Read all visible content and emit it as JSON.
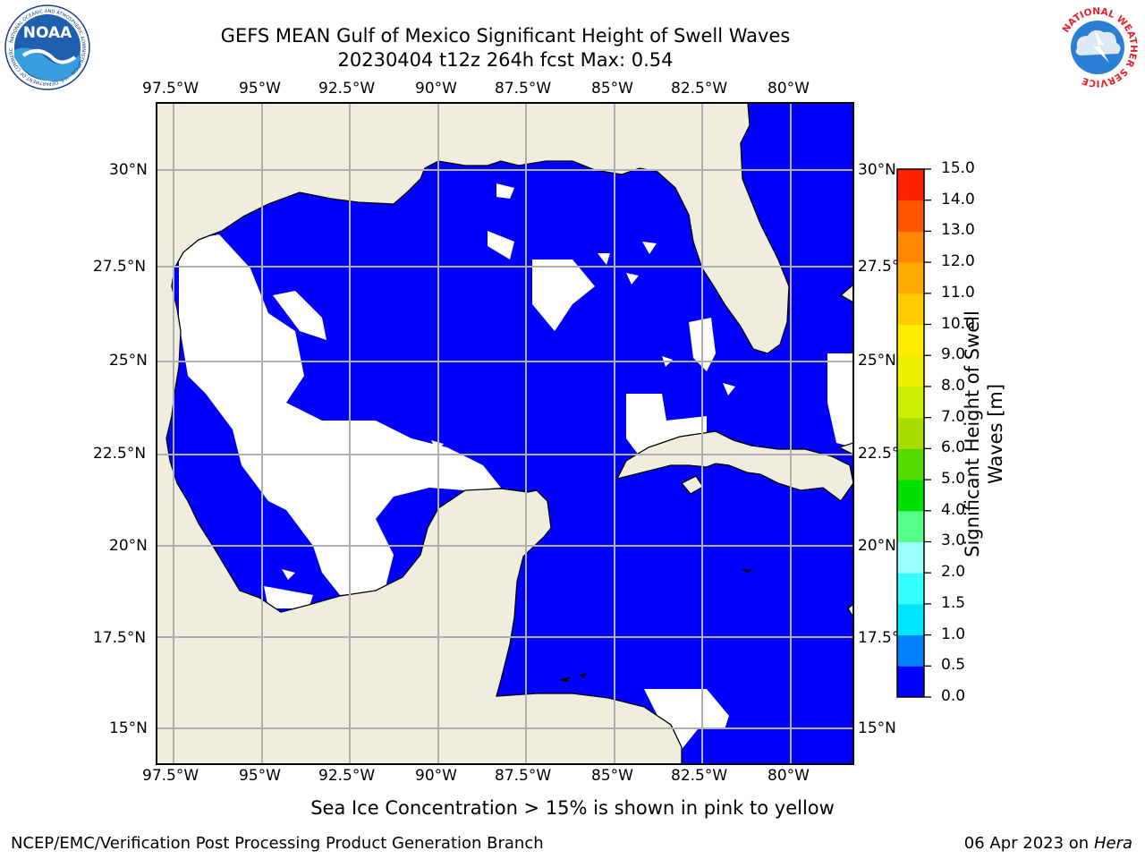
{
  "title": {
    "line1": "GEFS MEAN Gulf of Mexico Significant Height of Swell Waves",
    "line2": "20230404 t12z 264h fcst   Max: 0.54"
  },
  "logos": {
    "left": {
      "name": "noaa-logo",
      "text": "NOAA",
      "ring_text": "NATIONAL OCEANIC AND ATMOSPHERIC ADMINISTRATION · U.S. DEPARTMENT OF COMMERCE"
    },
    "right": {
      "name": "nws-logo",
      "ring_text": "NATIONAL WEATHER SERVICE"
    }
  },
  "map": {
    "longitude_labels": [
      "97.5°W",
      "95°W",
      "92.5°W",
      "90°W",
      "87.5°W",
      "85°W",
      "82.5°W",
      "80°W"
    ],
    "latitude_labels": [
      "30°N",
      "27.5°N",
      "25°N",
      "22.5°N",
      "20°N",
      "17.5°N",
      "15°N"
    ],
    "longitudes": [
      -97.5,
      -95,
      -92.5,
      -90,
      -87.5,
      -85,
      -82.5,
      -80
    ],
    "latitudes": [
      30,
      27.5,
      25,
      22.5,
      20,
      17.5,
      15
    ],
    "lon_range": [
      -98,
      -78.2
    ],
    "lat_range": [
      14,
      31.9
    ],
    "land_color": "#efedde",
    "water_color": "#0000ff",
    "no_data_color": "#ffffff",
    "gridlines": true
  },
  "colorbar": {
    "label": "Significant Height of Swell Waves [m]",
    "label_line1": "Significant Height of Swell",
    "label_line2": "Waves [m]",
    "ticks": [
      "15.0",
      "14.0",
      "13.0",
      "12.0",
      "11.0",
      "10.0",
      "9.0",
      "8.0",
      "7.0",
      "6.0",
      "5.0",
      "4.0",
      "3.0",
      "2.0",
      "1.5",
      "1.0",
      "0.5",
      "0.0"
    ],
    "levels": [
      0,
      0.5,
      1,
      1.5,
      2,
      3,
      4,
      5,
      6,
      7,
      8,
      9,
      10,
      11,
      12,
      13,
      14,
      15
    ],
    "colors": [
      "#0000ff",
      "#0080ff",
      "#00e5ff",
      "#33ffff",
      "#99ffff",
      "#55ff88",
      "#00e000",
      "#55dd00",
      "#aadd00",
      "#ccee00",
      "#eeee00",
      "#ffee00",
      "#ffcc00",
      "#ffaa00",
      "#ff8800",
      "#ff5500",
      "#ff2200"
    ]
  },
  "chart_data": {
    "type": "heatmap",
    "title": "GEFS MEAN Gulf of Mexico Significant Height of Swell Waves",
    "subtitle": "20230404 t12z 264h fcst   Max: 0.54",
    "variable": "Significant Height of Swell Waves [m]",
    "max_value": 0.54,
    "value_range": [
      0.0,
      15.0
    ],
    "xlabel": "",
    "ylabel": "",
    "x_ticks": [
      "97.5°W",
      "95°W",
      "92.5°W",
      "90°W",
      "87.5°W",
      "85°W",
      "82.5°W",
      "80°W"
    ],
    "y_ticks": [
      "30°N",
      "27.5°N",
      "25°N",
      "22.5°N",
      "20°N",
      "17.5°N",
      "15°N"
    ],
    "grid": true
  },
  "note": "Sea Ice Concentration > 15% is shown in pink to yellow",
  "footer": {
    "left": "NCEP/EMC/Verification Post Processing Product Generation Branch",
    "date": "06 Apr 2023 on ",
    "host": "Hera"
  }
}
